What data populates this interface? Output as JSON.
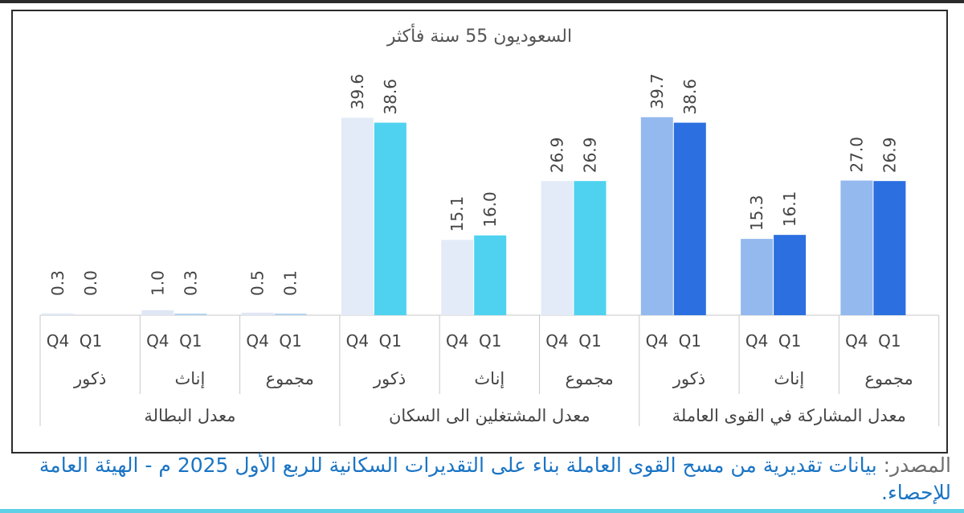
{
  "chart_data": {
    "type": "bar",
    "title": "السعوديون 55 سنة فأكثر",
    "series": [
      {
        "name": "Q4",
        "values": [
          0.3,
          1.0,
          0.5,
          39.6,
          15.1,
          26.9,
          39.7,
          15.3,
          27.0
        ]
      },
      {
        "name": "Q1",
        "values": [
          0.0,
          0.3,
          0.1,
          38.6,
          16.0,
          26.9,
          38.6,
          16.1,
          26.9
        ]
      }
    ],
    "value_labels": {
      "Q4": [
        "0.3",
        "1.0",
        "0.5",
        "39.6",
        "15.1",
        "26.9",
        "39.7",
        "15.3",
        "27.0"
      ],
      "Q1": [
        "0.0",
        "0.3",
        "0.1",
        "38.6",
        "16.0",
        "26.9",
        "38.6",
        "16.1",
        "26.9"
      ]
    },
    "subcategories": [
      "ذكور",
      "إناث",
      "مجموع",
      "ذكور",
      "إناث",
      "مجموع",
      "ذكور",
      "إناث",
      "مجموع"
    ],
    "groups": [
      "معدل البطالة",
      "معدل المشتغلين الى السكان",
      "معدل المشاركة في القوى العاملة"
    ],
    "ylim": [
      0,
      42
    ],
    "grid": false,
    "colors": {
      "group_1": {
        "Q4": "#dfe7f5",
        "Q1": "#b3d3ef"
      },
      "group_2": {
        "Q4": "#e3ebf8",
        "Q1": "#4fd2f0"
      },
      "group_3": {
        "Q4": "#93b9ee",
        "Q1": "#2b6fe0"
      }
    }
  },
  "source": {
    "label": "المصدر: ",
    "text": "بيانات تقديرية من مسح القوى العاملة بناء على التقديرات السكانية للربع الأول 2025 م - الهيئة العامة للإحصاء."
  }
}
